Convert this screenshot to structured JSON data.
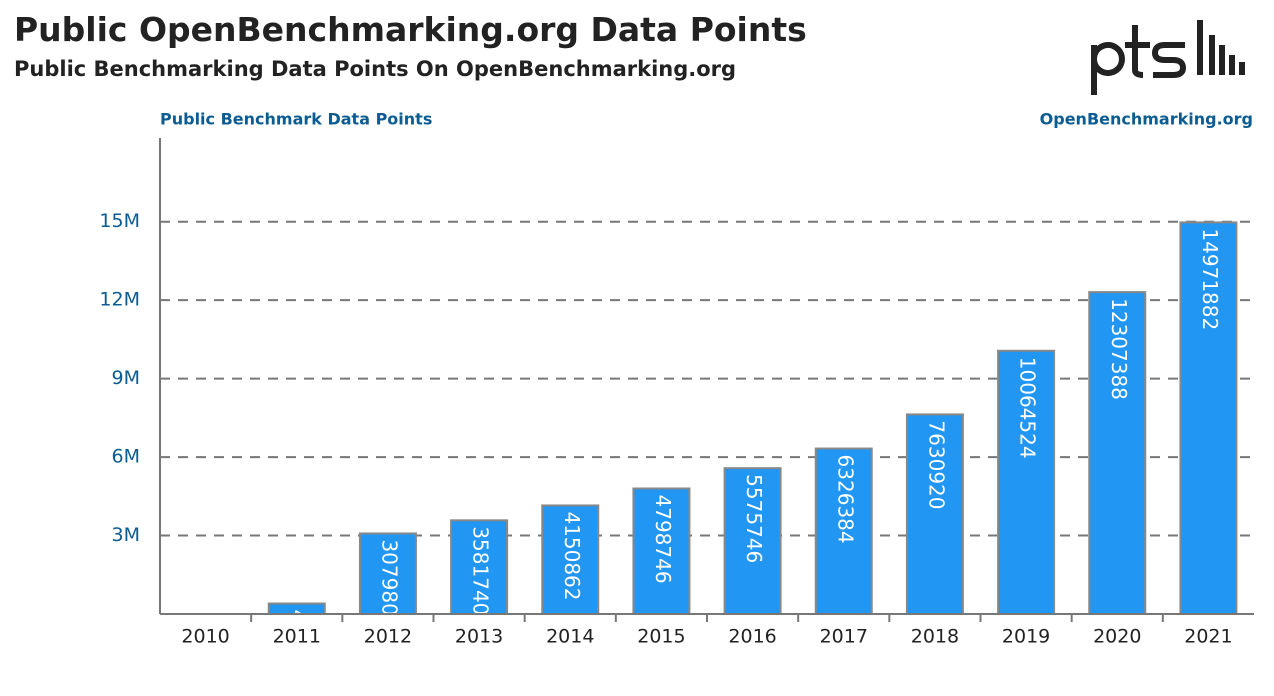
{
  "chart_data": {
    "type": "bar",
    "title": "Public OpenBenchmarking.org Data Points",
    "subtitle": "Public Benchmarking Data Points On OpenBenchmarking.org",
    "y_label": "Public Benchmark Data Points",
    "source": "OpenBenchmarking.org",
    "categories": [
      "2010",
      "2011",
      "2012",
      "2013",
      "2014",
      "2015",
      "2016",
      "2017",
      "2018",
      "2019",
      "2020",
      "2021"
    ],
    "values": [
      null,
      400000,
      3079800,
      3581740,
      4150862,
      4798746,
      5575746,
      6326384,
      7630920,
      10064524,
      12307388,
      14971882
    ],
    "color": "#2196f3",
    "ylim": [
      0,
      18200000
    ],
    "yticks": [
      {
        "value": 3000000,
        "label": "3M"
      },
      {
        "value": 6000000,
        "label": "6M"
      },
      {
        "value": 9000000,
        "label": "9M"
      },
      {
        "value": 12000000,
        "label": "12M"
      },
      {
        "value": 15000000,
        "label": "15M"
      }
    ],
    "grid": true
  }
}
